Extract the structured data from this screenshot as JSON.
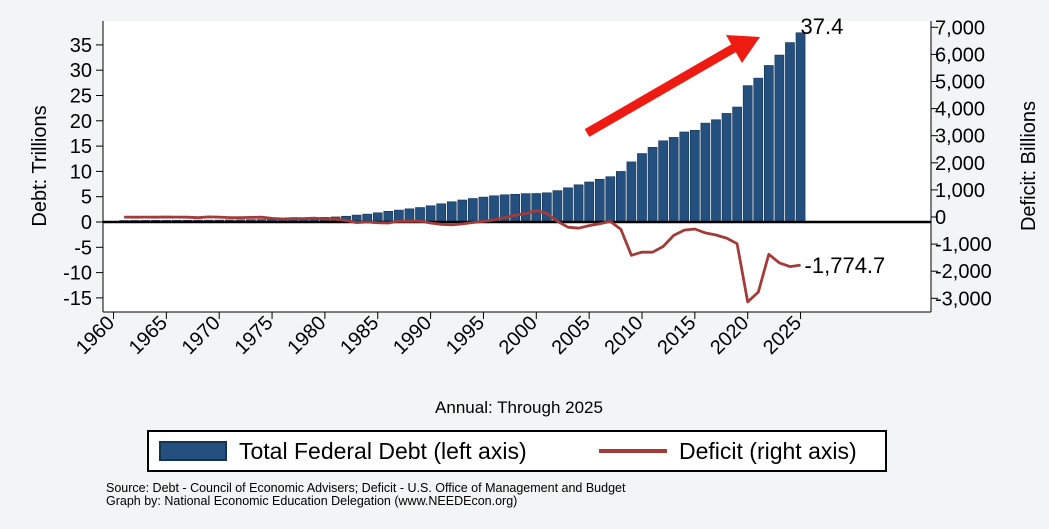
{
  "chart_data": {
    "type": "bar",
    "x_label": "Annual: Through 2025",
    "y_label_left": "Debt: Trillions",
    "y_label_right": "Deficit: Billions",
    "ylim_left": [
      -17,
      38.5
    ],
    "ylim_right": [
      -3400,
      7700
    ],
    "left_ticks": [
      "35",
      "30",
      "25",
      "20",
      "15",
      "10",
      "5",
      "0",
      "-5",
      "-10",
      "-15"
    ],
    "right_ticks": [
      "7,000",
      "6,000",
      "5,000",
      "4,000",
      "3,000",
      "2,000",
      "1,000",
      "0",
      "-1,000",
      "-2,000",
      "-3,000"
    ],
    "x_ticks": [
      "1960",
      "1965",
      "1970",
      "1975",
      "1980",
      "1985",
      "1990",
      "1995",
      "2000",
      "2005",
      "2010",
      "2015",
      "2020",
      "2025"
    ],
    "x_range": [
      1959.5,
      2026.5
    ],
    "years": [
      1961,
      1962,
      1963,
      1964,
      1965,
      1966,
      1967,
      1968,
      1969,
      1970,
      1971,
      1972,
      1973,
      1974,
      1975,
      1976,
      1977,
      1978,
      1979,
      1980,
      1981,
      1982,
      1983,
      1984,
      1985,
      1986,
      1987,
      1988,
      1989,
      1990,
      1991,
      1992,
      1993,
      1994,
      1995,
      1996,
      1997,
      1998,
      1999,
      2000,
      2001,
      2002,
      2003,
      2004,
      2005,
      2006,
      2007,
      2008,
      2009,
      2010,
      2011,
      2012,
      2013,
      2014,
      2015,
      2016,
      2017,
      2018,
      2019,
      2020,
      2021,
      2022,
      2023,
      2024,
      2025
    ],
    "series": [
      {
        "name": "Total Federal Debt (left axis)",
        "axis": "left",
        "type": "bar",
        "values": [
          0.29,
          0.3,
          0.31,
          0.32,
          0.32,
          0.33,
          0.34,
          0.37,
          0.37,
          0.38,
          0.41,
          0.44,
          0.47,
          0.48,
          0.54,
          0.63,
          0.71,
          0.78,
          0.83,
          0.91,
          1.0,
          1.14,
          1.37,
          1.56,
          1.82,
          2.12,
          2.35,
          2.6,
          2.86,
          3.21,
          3.6,
          4.0,
          4.35,
          4.64,
          4.92,
          5.18,
          5.37,
          5.48,
          5.61,
          5.63,
          5.77,
          6.2,
          6.76,
          7.35,
          7.91,
          8.45,
          8.95,
          9.99,
          11.88,
          13.53,
          14.76,
          16.05,
          16.72,
          17.79,
          18.12,
          19.54,
          20.21,
          21.46,
          22.72,
          26.95,
          28.43,
          30.93,
          32.99,
          35.46,
          37.4
        ]
      },
      {
        "name": "Deficit (right axis)",
        "axis": "right",
        "type": "line",
        "values": [
          -3,
          -7,
          -5,
          -6,
          -1,
          -4,
          -9,
          -25,
          3,
          -3,
          -23,
          -23,
          -15,
          -6,
          -53,
          -74,
          -54,
          -59,
          -41,
          -74,
          -79,
          -128,
          -208,
          -185,
          -212,
          -221,
          -150,
          -155,
          -153,
          -221,
          -269,
          -290,
          -255,
          -203,
          -164,
          -107,
          -22,
          69,
          126,
          236,
          128,
          -158,
          -378,
          -413,
          -318,
          -248,
          -161,
          -459,
          -1413,
          -1294,
          -1300,
          -1087,
          -680,
          -485,
          -442,
          -585,
          -665,
          -779,
          -984,
          -3132,
          -2772,
          -1375,
          -1695,
          -1832,
          -1774.7
        ]
      }
    ],
    "annotations": {
      "debt_end_label": "37.4",
      "deficit_end_label": "-1,774.7"
    },
    "legend": {
      "debt": "Total Federal Debt (left axis)",
      "deficit": "Deficit (right axis)",
      "placement": "bottom"
    },
    "colors": {
      "bar": "#23507e",
      "bar_edge": "#15324f",
      "line": "#a33b38",
      "arrow": "#ee1b12",
      "plot_bg": "#ffffff",
      "page_bg": "#f1f5f5"
    }
  },
  "source": {
    "line1": "Source: Debt - Council of Economic Advisers; Deficit - U.S. Office of Management and Budget",
    "line2": "Graph by: National Economic Education Delegation (www.NEEDEcon.org)"
  }
}
